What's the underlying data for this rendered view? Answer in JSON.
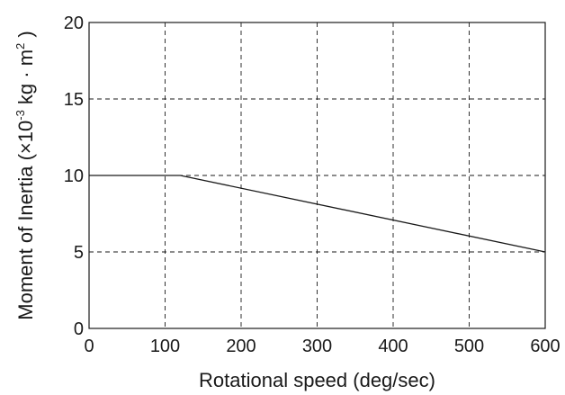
{
  "chart_data": {
    "type": "line",
    "title": "",
    "xlabel": "Rotational speed  (deg/sec)",
    "ylabel": {
      "prefix": "Moment of Inertia (×10",
      "exp1": "-3",
      "middle": " kg · m",
      "exp2": "2",
      "suffix": " )"
    },
    "xlim": [
      0,
      600
    ],
    "ylim": [
      0,
      20
    ],
    "x_ticks": [
      0,
      100,
      200,
      300,
      400,
      500,
      600
    ],
    "y_ticks": [
      0,
      5,
      10,
      15,
      20
    ],
    "x_tick_labels": [
      "0",
      "100",
      "200",
      "300",
      "400",
      "500",
      "600"
    ],
    "y_tick_labels": [
      "0",
      "5",
      "10",
      "15",
      "20"
    ],
    "grid": true,
    "grid_style": "dashed",
    "series": [
      {
        "x": [
          0,
          120,
          600
        ],
        "y": [
          10,
          10,
          5
        ],
        "color": "#1a1a1a"
      }
    ]
  }
}
